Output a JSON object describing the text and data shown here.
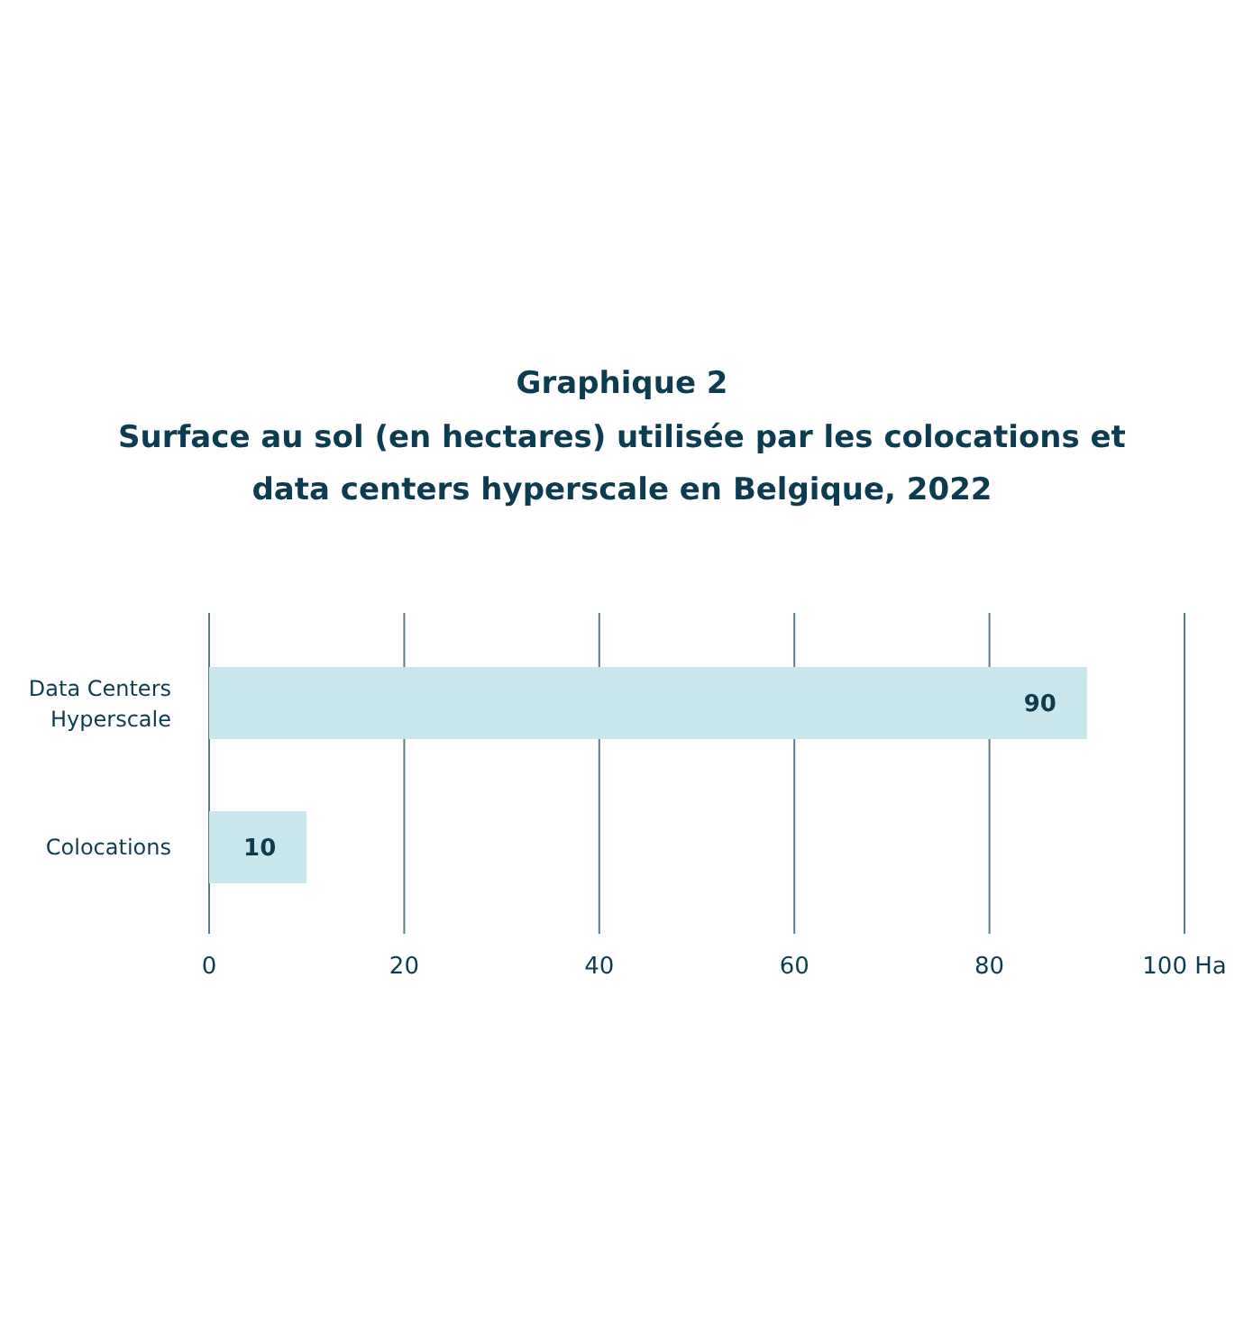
{
  "chart_data": {
    "type": "bar",
    "orientation": "horizontal",
    "title": "Graphique 2",
    "subtitle": "Surface au sol (en hectares) utilisée par les colocations et data centers hyperscale en Belgique, 2022",
    "categories": [
      "Data Centers Hyperscale",
      "Colocations"
    ],
    "values": [
      90,
      10
    ],
    "color": "#c8e6ec",
    "data_labels": true,
    "xlim": [
      0,
      100
    ],
    "xticks": [
      0,
      20,
      40,
      60,
      80,
      {
        "value": 100,
        "label": "100 Ha"
      }
    ],
    "grid": "x"
  }
}
